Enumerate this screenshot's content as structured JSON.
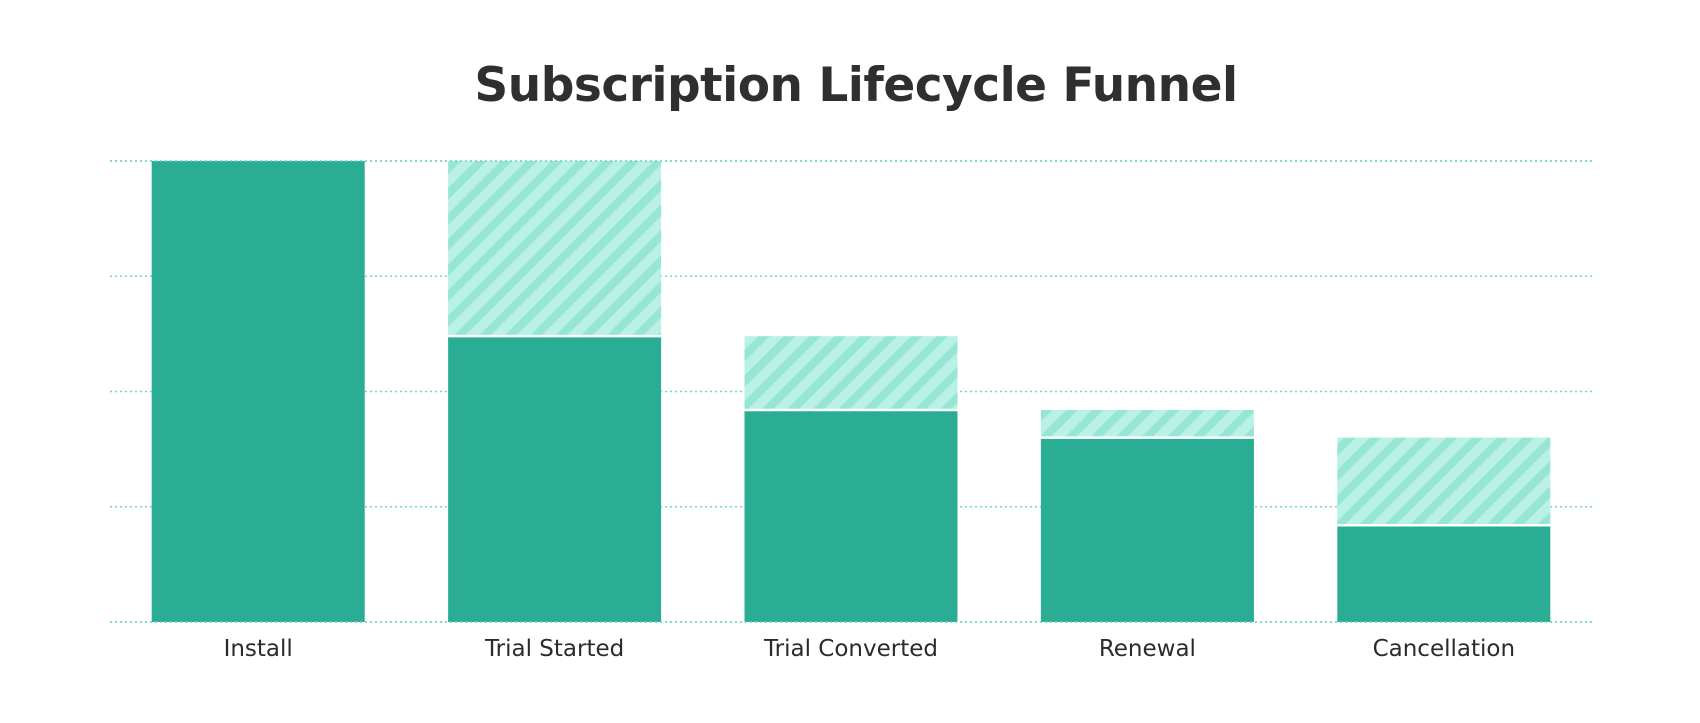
{
  "chart_data": {
    "type": "bar",
    "title": "Subscription Lifecycle Funnel",
    "xlabel": "",
    "ylabel": "",
    "categories": [
      "Install",
      "Trial Started",
      "Trial Converted",
      "Renewal",
      "Cancellation"
    ],
    "series": [
      {
        "values": [
          100,
          62,
          46,
          40,
          21
        ]
      },
      {
        "values": [
          0,
          38,
          16,
          6,
          19
        ]
      }
    ],
    "ylim": [
      0,
      100
    ],
    "grid": true,
    "colors": {
      "solid": "#2bac94",
      "hatch_bg": "#b9f1e4",
      "hatch_stripe": "#97e6d5",
      "grid": "#6fd6c2",
      "title": "#2f2f2f",
      "label": "#2b2b2b"
    }
  }
}
